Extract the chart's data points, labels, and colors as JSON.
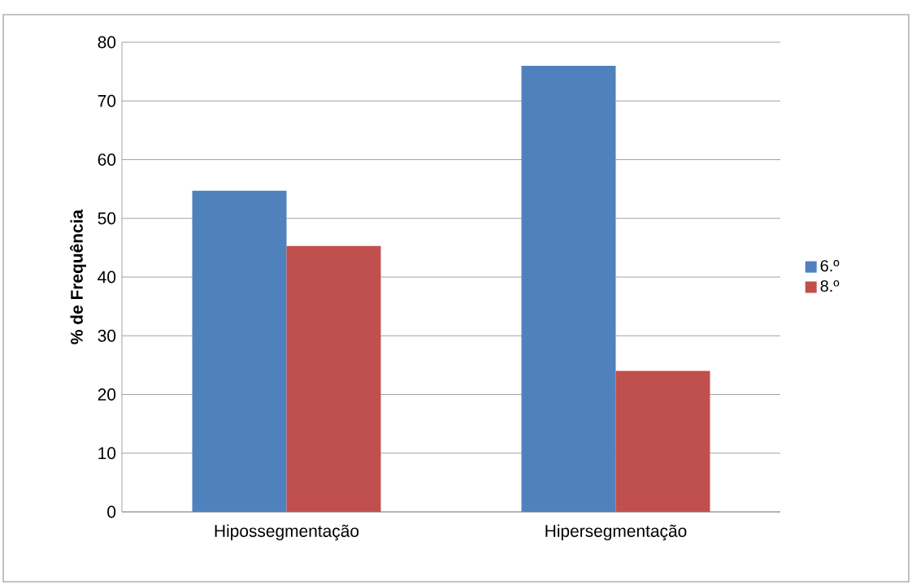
{
  "chart_data": {
    "type": "bar",
    "ylabel": "% de Frequência",
    "categories": [
      "Hipossegmentação",
      "Hipersegmentação"
    ],
    "series": [
      {
        "name": "6.º",
        "color": "#4f81bd",
        "values": [
          54.7,
          76
        ]
      },
      {
        "name": "8.º",
        "color": "#c0504d",
        "values": [
          45.3,
          24
        ]
      }
    ],
    "ylim": [
      0,
      80
    ],
    "yticks": [
      0,
      10,
      20,
      30,
      40,
      50,
      60,
      70,
      80
    ],
    "grid": "y",
    "legend": "right"
  }
}
